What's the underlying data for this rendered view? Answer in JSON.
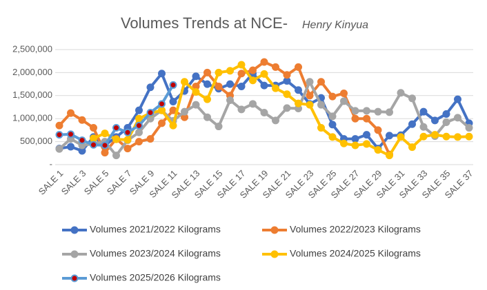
{
  "chart_data": {
    "type": "line",
    "title": "Volumes Trends at NCE-",
    "subtitle": "Henry Kinyua",
    "categories": [
      "SALE 1",
      null,
      "SALE 3",
      null,
      "SALE 5",
      null,
      "SALE 7",
      null,
      "SALE 9",
      null,
      "SALE 11",
      null,
      "SALE 13",
      null,
      "SALE 15",
      null,
      "SALE 17",
      null,
      "SALE 19",
      null,
      "SALE 21",
      null,
      "SALE 23",
      null,
      "SALE 25",
      null,
      "SALE 27",
      null,
      "SALE 29",
      null,
      "SALE 31",
      null,
      "SALE 33",
      null,
      "SALE 35",
      null,
      "SALE 37"
    ],
    "ylim": [
      0,
      2500000
    ],
    "yticks": [
      {
        "value": 0,
        "label": "-"
      },
      {
        "value": 500000,
        "label": "500,000"
      },
      {
        "value": 1000000,
        "label": "1,000,000"
      },
      {
        "value": 1500000,
        "label": "1,500,000"
      },
      {
        "value": 2000000,
        "label": "2,000,000"
      },
      {
        "value": 2500000,
        "label": "2,500,000"
      }
    ],
    "grid": true,
    "legend": "bottom",
    "series": [
      {
        "name": "Volumes 2021/2022 Kilograms",
        "color": "#4472c4",
        "values": [
          350000,
          390000,
          300000,
          600000,
          420000,
          600000,
          800000,
          1180000,
          1680000,
          1980000,
          1370000,
          1600000,
          1920000,
          1750000,
          1650000,
          1750000,
          1700000,
          1980000,
          1720000,
          1720000,
          1820000,
          1620000,
          1320000,
          1450000,
          870000,
          560000,
          560000,
          650000,
          350000,
          630000,
          640000,
          880000,
          1150000,
          960000,
          1100000,
          1420000,
          900000
        ]
      },
      {
        "name": "Volumes 2022/2023 Kilograms",
        "color": "#ed7d31",
        "values": [
          850000,
          1120000,
          970000,
          800000,
          260000,
          560000,
          350000,
          500000,
          560000,
          900000,
          1180000,
          1030000,
          1700000,
          2000000,
          1700000,
          1500000,
          1980000,
          2050000,
          2230000,
          2120000,
          1950000,
          2120000,
          1500000,
          1800000,
          1480000,
          1550000,
          1000000,
          1000000,
          750000,
          220000,
          null,
          null,
          null,
          null,
          null,
          null,
          null
        ]
      },
      {
        "name": "Volumes 2023/2024 Kilograms",
        "color": "#a5a5a5",
        "values": [
          340000,
          560000,
          420000,
          450000,
          500000,
          200000,
          530000,
          700000,
          1000000,
          1180000,
          950000,
          1150000,
          1300000,
          1030000,
          830000,
          1400000,
          1200000,
          1320000,
          1130000,
          960000,
          1230000,
          1220000,
          1800000,
          1300000,
          1050000,
          1380000,
          1170000,
          1170000,
          1150000,
          1140000,
          1560000,
          1440000,
          820000,
          620000,
          920000,
          1020000,
          800000
        ]
      },
      {
        "name": "Volumes 2024/2025 Kilograms",
        "color": "#ffc000",
        "values": [
          null,
          null,
          null,
          570000,
          680000,
          550000,
          540000,
          1000000,
          1120000,
          1180000,
          850000,
          1800000,
          1580000,
          1420000,
          2000000,
          2040000,
          2170000,
          1830000,
          1970000,
          1660000,
          1530000,
          1330000,
          1300000,
          800000,
          600000,
          460000,
          420000,
          450000,
          320000,
          200000,
          600000,
          380000,
          610000,
          650000,
          610000,
          600000,
          610000
        ]
      },
      {
        "name": "Volumes 2025/2026 Kilograms",
        "color": "#5b9bd5",
        "marker_color": "#c00000",
        "values": [
          650000,
          660000,
          530000,
          430000,
          420000,
          800000,
          700000,
          850000,
          1130000,
          1320000,
          1730000,
          null,
          null,
          null,
          null,
          null,
          null,
          null,
          null,
          null,
          null,
          null,
          null,
          null,
          null,
          null,
          null,
          null,
          null,
          null,
          null,
          null,
          null,
          null,
          null,
          null,
          null
        ]
      }
    ]
  }
}
